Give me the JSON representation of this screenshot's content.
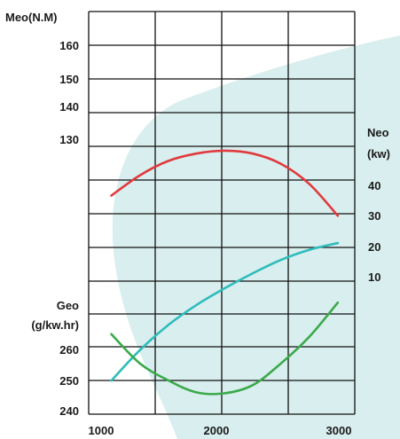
{
  "chart_data": {
    "type": "line",
    "x": [
      1000,
      1250,
      1500,
      1750,
      2000,
      2250,
      2500,
      2750,
      3000
    ],
    "x_tick_labels": [
      "1000",
      "2000",
      "3000"
    ],
    "xlim": [
      800,
      3150
    ],
    "grid": true,
    "axes": {
      "meo": {
        "label": "Meo(N.M)",
        "ticks": [
          "160",
          "150",
          "140",
          "130"
        ],
        "ylim": [
          105,
          175
        ]
      },
      "neo": {
        "label_lines": [
          "Neo",
          "(kw)"
        ],
        "ticks": [
          "40",
          "30",
          "20",
          "10"
        ],
        "ylim": [
          0,
          120
        ]
      },
      "geo": {
        "label_lines": [
          "Geo",
          "(g/kw.hr)"
        ],
        "ticks": [
          "260",
          "250",
          "240"
        ],
        "ylim": [
          237,
          320
        ]
      }
    },
    "series": [
      {
        "axis": "meo",
        "color": "#e03a3e",
        "values": [
          143.0,
          146.5,
          149.0,
          150.3,
          150.8,
          150.3,
          148.5,
          145.0,
          139.5
        ]
      },
      {
        "axis": "neo",
        "color": "#2ebcbc",
        "values": [
          10,
          19,
          26.5,
          32.5,
          37.5,
          42,
          46,
          49,
          51
        ]
      },
      {
        "axis": "geo",
        "color": "#3aaa4a",
        "values": [
          253.5,
          247.5,
          244.0,
          241.5,
          241.3,
          243.0,
          247.5,
          253.0,
          260.0
        ]
      }
    ],
    "colors": {
      "grid": "#111111",
      "background_shape": "#d9eeee"
    }
  }
}
